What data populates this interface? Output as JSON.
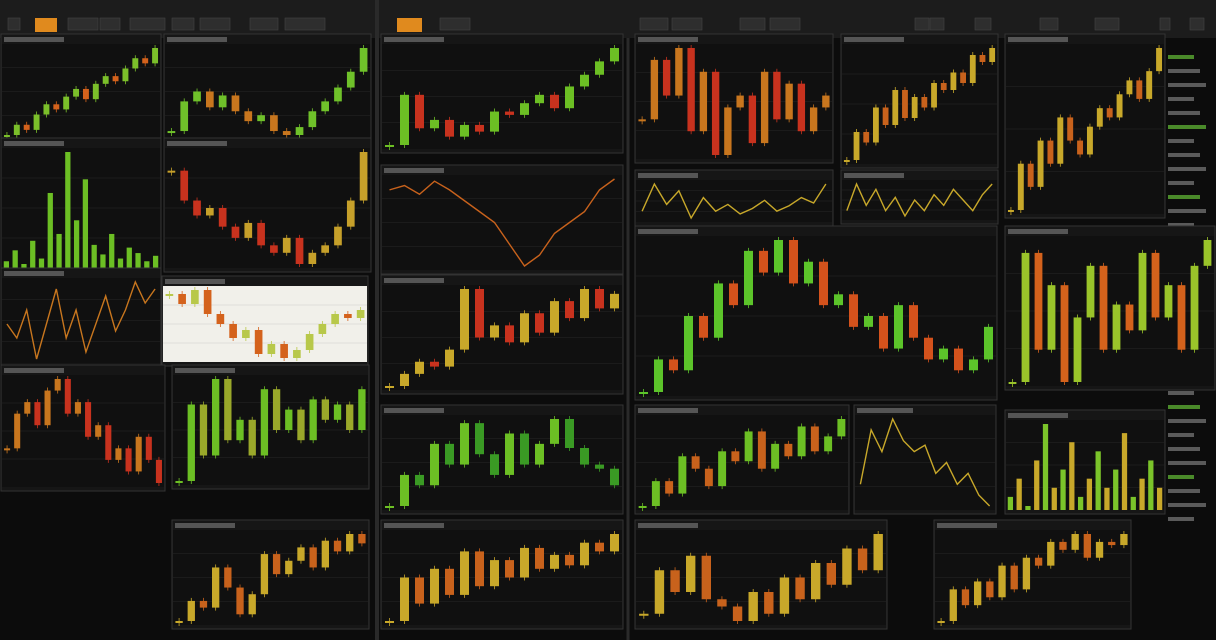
{
  "panels": [
    {
      "type": "candles",
      "colors": [
        "#7bbf2a",
        "#d4621c"
      ],
      "values": [
        40,
        44,
        42,
        48,
        52,
        50,
        55,
        58,
        54,
        60,
        63,
        61,
        66,
        70,
        68,
        74
      ]
    },
    {
      "type": "candles",
      "colors": [
        "#6fc12a",
        "#c8761e"
      ],
      "values": [
        30,
        45,
        50,
        42,
        48,
        40,
        35,
        38,
        30,
        28,
        32,
        40,
        45,
        52,
        60,
        72
      ]
    },
    {
      "type": "bars",
      "colors": [
        "#6cbf24",
        "#6cbf24"
      ],
      "values": [
        10,
        18,
        8,
        25,
        12,
        60,
        30,
        90,
        40,
        70,
        22,
        15,
        30,
        12,
        20,
        16,
        10,
        14
      ]
    },
    {
      "type": "candles",
      "colors": [
        "#c6a02a",
        "#c8321e"
      ],
      "values": [
        70,
        62,
        58,
        60,
        55,
        52,
        56,
        50,
        48,
        52,
        45,
        48,
        50,
        55,
        62,
        75
      ]
    },
    {
      "type": "line",
      "colors": [
        "#c8761e",
        "#c8761e"
      ],
      "values": [
        50,
        48,
        52,
        45,
        50,
        55,
        48,
        52,
        46,
        50,
        54,
        49,
        52,
        56,
        53,
        55
      ]
    },
    {
      "type": "candles",
      "colors": [
        "#b8c84a",
        "#d4621c"
      ],
      "bg": "#f1f0ea",
      "values": [
        70,
        65,
        72,
        60,
        55,
        48,
        52,
        40,
        45,
        38,
        42,
        50,
        55,
        60,
        58,
        62
      ]
    },
    {
      "type": "candles",
      "colors": [
        "#c8761e",
        "#c8321e"
      ],
      "values": [
        40,
        55,
        60,
        50,
        65,
        70,
        55,
        60,
        45,
        50,
        35,
        40,
        30,
        45,
        35,
        25
      ]
    },
    {
      "type": "candles",
      "colors": [
        "#6cbf24",
        "#9aa82a"
      ],
      "values": [
        40,
        55,
        45,
        60,
        48,
        52,
        45,
        58,
        50,
        54,
        48,
        56,
        52,
        55,
        50,
        58
      ]
    },
    {
      "type": "candles",
      "colors": [
        "#c8a82a",
        "#c8621c"
      ],
      "values": [
        20,
        35,
        30,
        60,
        45,
        25,
        40,
        70,
        55,
        65,
        75,
        60,
        80,
        72,
        85,
        78
      ]
    },
    {
      "type": "candles",
      "colors": [
        "#6cbf24",
        "#c8321e"
      ],
      "values": [
        30,
        60,
        40,
        45,
        35,
        42,
        38,
        50,
        48,
        55,
        60,
        52,
        65,
        72,
        80,
        88
      ]
    },
    {
      "type": "line",
      "colors": [
        "#c8621c",
        "#c8621c"
      ],
      "values": [
        70,
        72,
        68,
        74,
        70,
        65,
        60,
        55,
        45,
        35,
        40,
        50,
        55,
        60,
        70,
        75
      ]
    },
    {
      "type": "candles",
      "colors": [
        "#c8a82a",
        "#c8321e"
      ],
      "values": [
        20,
        25,
        30,
        28,
        35,
        60,
        40,
        45,
        38,
        50,
        42,
        55,
        48,
        60,
        52,
        58
      ]
    },
    {
      "type": "candles",
      "colors": [
        "#6cbf24",
        "#3a9a24"
      ],
      "values": [
        30,
        45,
        40,
        60,
        50,
        70,
        55,
        45,
        65,
        50,
        60,
        72,
        58,
        50,
        48,
        40
      ]
    },
    {
      "type": "candles",
      "colors": [
        "#c8a82a",
        "#c8621c"
      ],
      "values": [
        30,
        55,
        40,
        60,
        45,
        70,
        50,
        65,
        55,
        72,
        60,
        68,
        62,
        75,
        70,
        80
      ]
    },
    {
      "type": "candles",
      "colors": [
        "#c8761e",
        "#c8321e"
      ],
      "values": [
        50,
        75,
        60,
        80,
        45,
        70,
        35,
        55,
        60,
        40,
        70,
        50,
        65,
        45,
        55,
        60
      ]
    },
    {
      "type": "line",
      "colors": [
        "#c8a82a",
        "#c8621c"
      ],
      "values": [
        40,
        60,
        45,
        55,
        35,
        50,
        40,
        45,
        38,
        42,
        48,
        40,
        44,
        50,
        46,
        60
      ]
    },
    {
      "type": "candles",
      "colors": [
        "#5cc42a",
        "#d4521c"
      ],
      "values": [
        20,
        35,
        30,
        55,
        45,
        70,
        60,
        85,
        75,
        90,
        70,
        80,
        60,
        65,
        50,
        55,
        40,
        60,
        45,
        35,
        40,
        30,
        35,
        50
      ]
    },
    {
      "type": "candles",
      "colors": [
        "#6cbf24",
        "#c8621c"
      ],
      "values": [
        40,
        50,
        45,
        60,
        55,
        48,
        62,
        58,
        70,
        55,
        65,
        60,
        72,
        62,
        68,
        75
      ]
    },
    {
      "type": "candles",
      "colors": [
        "#c8a82a",
        "#c8621c"
      ],
      "values": [
        30,
        60,
        45,
        70,
        40,
        35,
        25,
        45,
        30,
        55,
        40,
        65,
        50,
        75,
        60,
        85
      ]
    },
    {
      "type": "candles",
      "colors": [
        "#c8a82a",
        "#c8621c"
      ],
      "values": [
        40,
        48,
        45,
        55,
        50,
        60,
        52,
        58,
        55,
        62,
        60,
        65,
        62,
        70,
        68,
        72
      ]
    },
    {
      "type": "line",
      "colors": [
        "#c8a82a",
        "#c8a82a"
      ],
      "values": [
        40,
        50,
        42,
        48,
        40,
        45,
        38,
        44,
        40,
        46,
        42,
        48,
        44,
        40,
        46,
        50
      ]
    },
    {
      "type": "line",
      "colors": [
        "#c8a82a",
        "#c8a82a"
      ],
      "values": [
        40,
        65,
        55,
        70,
        60,
        55,
        58,
        45,
        50,
        40,
        45,
        35,
        30
      ]
    },
    {
      "type": "candles",
      "colors": [
        "#c8a82a",
        "#c8621c"
      ],
      "values": [
        20,
        40,
        30,
        45,
        35,
        55,
        40,
        60,
        55,
        70,
        65,
        75,
        60,
        70,
        68,
        75
      ]
    },
    {
      "type": "candles",
      "colors": [
        "#c8a82a",
        "#c8621c"
      ],
      "values": [
        40,
        50,
        45,
        55,
        50,
        60,
        55,
        52,
        58,
        62,
        60,
        65,
        68,
        64,
        70,
        75
      ]
    },
    {
      "type": "candles",
      "colors": [
        "#9ac42a",
        "#d4621c"
      ],
      "values": [
        40,
        60,
        45,
        55,
        40,
        50,
        58,
        45,
        52,
        48,
        60,
        50,
        55,
        45,
        58,
        62
      ]
    },
    {
      "type": "bars",
      "colors": [
        "#7bc42a",
        "#c8a82a"
      ],
      "values": [
        20,
        30,
        15,
        40,
        60,
        25,
        35,
        50,
        20,
        30,
        45,
        25,
        35,
        55,
        20,
        30,
        40,
        25
      ]
    }
  ]
}
